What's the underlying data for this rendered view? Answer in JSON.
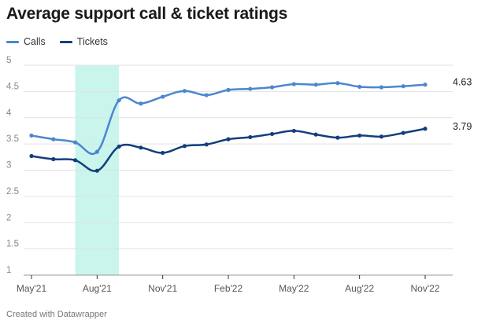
{
  "title": "Average support call & ticket ratings",
  "footer": "Created with Datawrapper",
  "colors": {
    "calls": "#4b86cf",
    "tickets": "#133e7c",
    "highlight": "#c9f5ec",
    "grid": "#e2e2e2",
    "axis": "#333333"
  },
  "chart_data": {
    "type": "line",
    "title": "Average support call & ticket ratings",
    "x": [
      "May'21",
      "Jun'21",
      "Jul'21",
      "Aug'21",
      "Sep'21",
      "Oct'21",
      "Nov'21",
      "Dec'21",
      "Jan'22",
      "Feb'22",
      "Mar'22",
      "Apr'22",
      "May'22",
      "Jun'22",
      "Jul'22",
      "Aug'22",
      "Sep'22",
      "Oct'22",
      "Nov'22"
    ],
    "x_tick_labels": [
      "May'21",
      "Aug'21",
      "Nov'21",
      "Feb'22",
      "May'22",
      "Aug'22",
      "Nov'22"
    ],
    "ylim": [
      1,
      5
    ],
    "y_ticks": [
      "1",
      "1.5",
      "2",
      "2.5",
      "3",
      "3.5",
      "4",
      "4.5",
      "5"
    ],
    "grid": true,
    "legend_position": "top-left",
    "highlight_range": [
      "Jul'21",
      "Sep'21"
    ],
    "series": [
      {
        "name": "Calls",
        "color": "#4b86cf",
        "values": [
          3.66,
          3.59,
          3.53,
          3.35,
          4.33,
          4.27,
          4.4,
          4.51,
          4.43,
          4.53,
          4.55,
          4.58,
          4.64,
          4.63,
          4.66,
          4.59,
          4.58,
          4.6,
          4.63
        ],
        "end_label": "4.63"
      },
      {
        "name": "Tickets",
        "color": "#133e7c",
        "values": [
          3.27,
          3.21,
          3.19,
          2.99,
          3.45,
          3.43,
          3.33,
          3.46,
          3.49,
          3.59,
          3.63,
          3.69,
          3.75,
          3.68,
          3.62,
          3.66,
          3.64,
          3.71,
          3.79
        ],
        "end_label": "3.79"
      }
    ]
  }
}
